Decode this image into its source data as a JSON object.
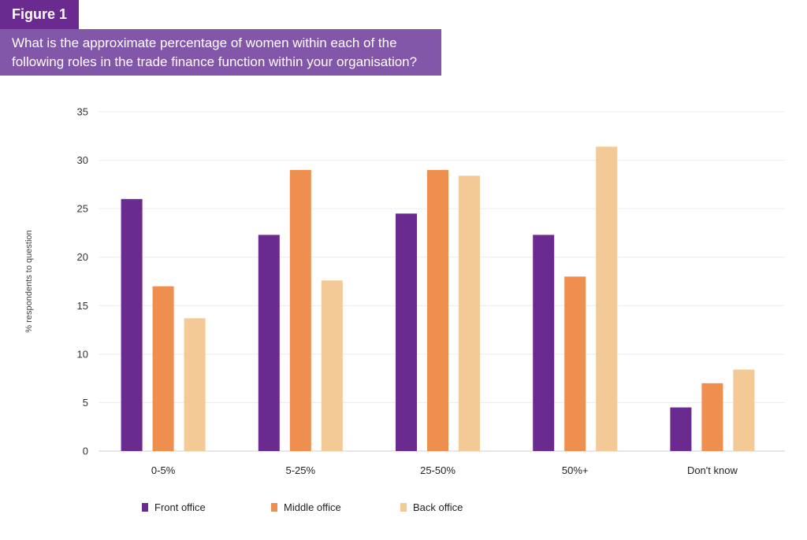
{
  "figure_label": "Figure 1",
  "question": "What is the approximate percentage of women within each of the following roles in the trade finance function within your organisation?",
  "chart_data": {
    "type": "bar",
    "categories": [
      "0-5%",
      "5-25%",
      "25-50%",
      "50%+",
      "Don't know"
    ],
    "series": [
      {
        "name": "Front office",
        "color": "#6a2a8f",
        "values": [
          26,
          22.3,
          24.5,
          22.3,
          4.5
        ]
      },
      {
        "name": "Middle office",
        "color": "#ef8f4f",
        "values": [
          17,
          29,
          29,
          18,
          7
        ]
      },
      {
        "name": "Back office",
        "color": "#f3c995",
        "values": [
          13.7,
          17.6,
          28.4,
          31.4,
          8.4
        ]
      }
    ],
    "ylabel": "% respondents to question",
    "ylim": [
      0,
      35
    ],
    "yticks": [
      0,
      5,
      10,
      15,
      20,
      25,
      30,
      35
    ],
    "grid": true,
    "legend_position": "bottom-left"
  }
}
